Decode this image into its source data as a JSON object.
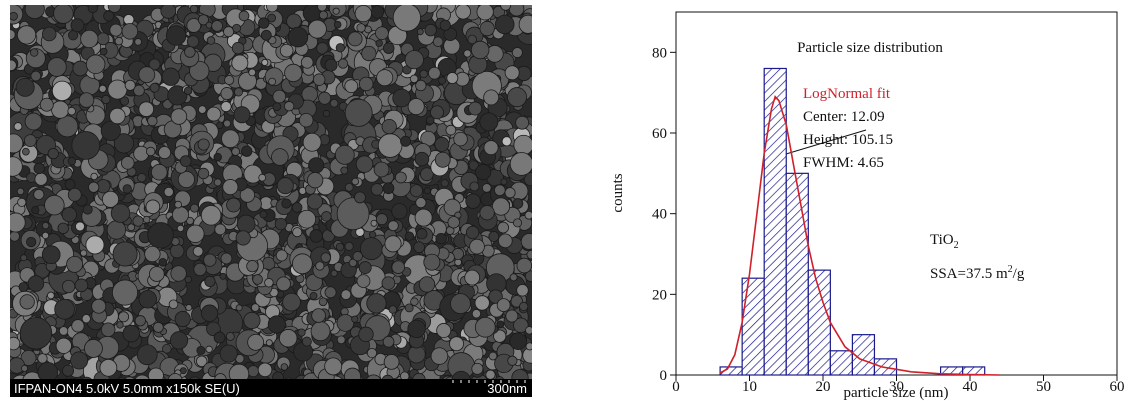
{
  "image": {
    "caption": "IFPAN-ON4 5.0kV 5.0mm x150k SE(U)",
    "scale_label": "300nm"
  },
  "chart_data": {
    "type": "histogram",
    "title": "Particle size distribution",
    "x_label": "particle size (nm)",
    "y_label": "counts",
    "bins": [
      6,
      9,
      12,
      15,
      18,
      21,
      24,
      27,
      30,
      33,
      36,
      39,
      42
    ],
    "values": [
      2,
      24,
      76,
      50,
      26,
      6,
      10,
      4,
      0,
      0,
      2,
      2
    ],
    "color": "#1a1a8c",
    "xlim": [
      0,
      60
    ],
    "ylim": [
      0,
      90
    ],
    "xticks": [
      0,
      10,
      20,
      30,
      40,
      50,
      60
    ],
    "yticks": [
      0,
      20,
      40,
      60,
      80
    ],
    "fit": {
      "name": "LogNormal fit",
      "color": "#d0202a",
      "x": [
        6,
        7,
        8,
        9,
        10,
        11,
        12,
        13,
        13.5,
        14,
        15,
        16,
        17,
        18,
        19,
        20,
        21,
        22,
        23,
        25,
        28,
        32,
        36,
        40,
        44
      ],
      "y": [
        0.5,
        1.5,
        5,
        13,
        25,
        40,
        55,
        66,
        69,
        68,
        62,
        52,
        42,
        32,
        24,
        18,
        13,
        10,
        7,
        4,
        2,
        0.8,
        0.3,
        0.1,
        0
      ]
    },
    "annotations": [
      "Center: 12.09",
      "Height: 105.15",
      "FWHM: 4.65"
    ],
    "material": {
      "text": "TiO",
      "sub": "2"
    },
    "ssa": {
      "text": "SSA=37.5 m",
      "sup": "2",
      "tail": "/g"
    }
  }
}
